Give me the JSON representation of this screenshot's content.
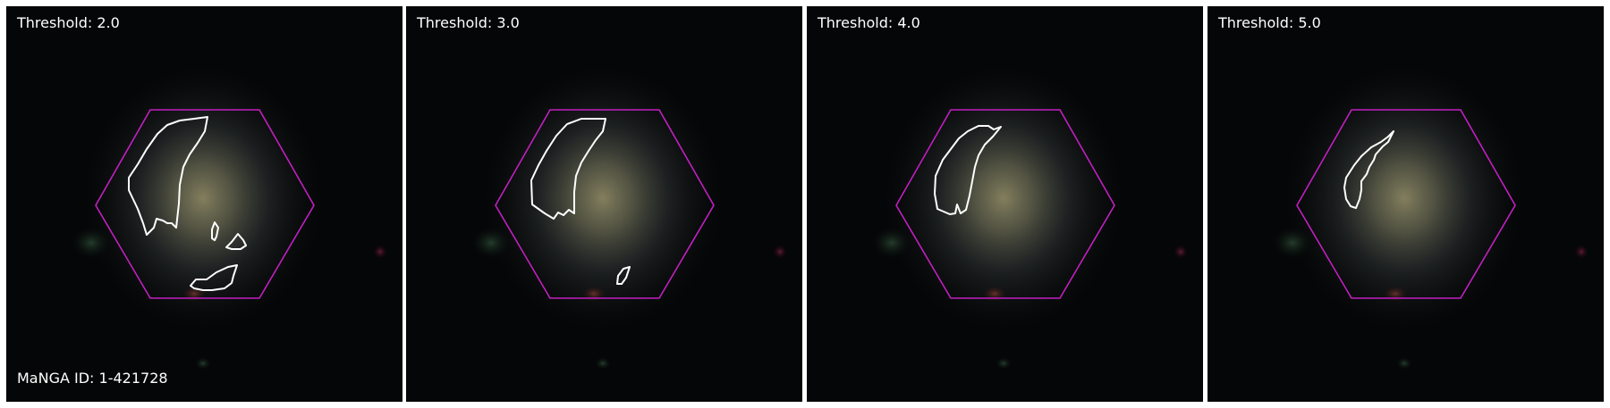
{
  "panels": [
    {
      "threshold_label": "Threshold: 2.0"
    },
    {
      "threshold_label": "Threshold: 3.0"
    },
    {
      "threshold_label": "Threshold: 4.0"
    },
    {
      "threshold_label": "Threshold: 5.0"
    }
  ],
  "galaxy_id_label": "MaNGA ID: 1-421728",
  "colors": {
    "background": "#000000",
    "hexagon": "#c21fc2",
    "contour": "#ffffff",
    "text": "#ffffff",
    "separator": "#ffffff"
  }
}
